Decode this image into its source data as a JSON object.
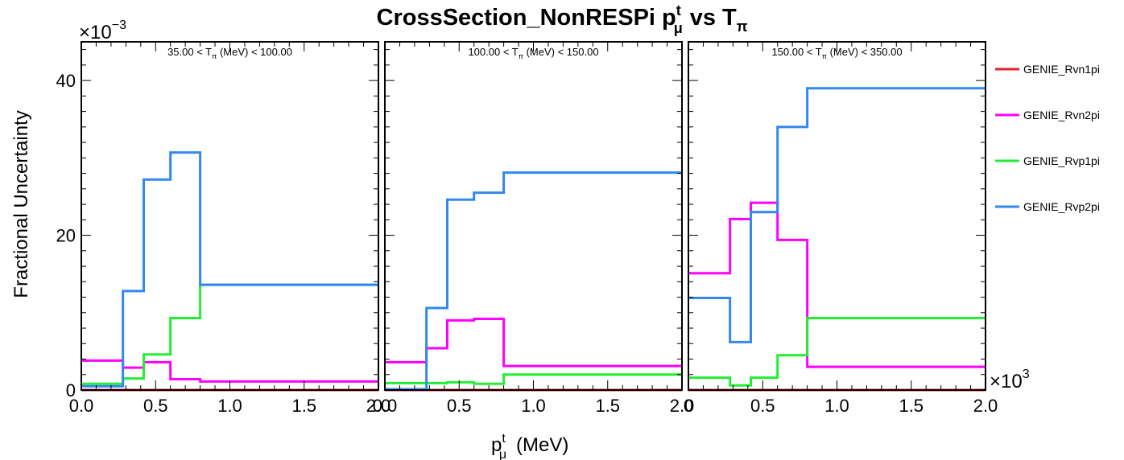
{
  "title": "CrossSection_NonRESPi",
  "title_main": "p",
  "title_main_sup": "t",
  "title_main_sub": "μ",
  "title_vs": "vs",
  "title_t": "T",
  "title_t_sub": "π",
  "y_axis_label": "Fractional Uncertainty",
  "x_axis_label": "p",
  "x_axis_label_sup": "t",
  "x_axis_label_sub": "μ",
  "x_axis_label_unit": "(MeV)",
  "y_multiplier": "×10",
  "y_multiplier_exp": "−3",
  "x_multiplier": "×10",
  "x_multiplier_exp": "3",
  "colors": {
    "GENIE_Rvn1pi": "#e8202a",
    "GENIE_Rvn2pi": "#ff00ff",
    "GENIE_Rvp1pi": "#22ee33",
    "GENIE_Rvp2pi": "#3388ee"
  },
  "chart_data": {
    "type": "line",
    "drawstyle": "steps-post",
    "bin_edges": [
      0.0,
      0.28,
      0.42,
      0.6,
      0.8,
      2.0
    ],
    "x_unit_note": "x values in units of 10^3 MeV",
    "y_unit_note": "y values in units of 10^-3",
    "ylim": [
      0,
      45
    ],
    "xlim": [
      0.0,
      2.0
    ],
    "y_ticks": [
      0,
      20,
      40
    ],
    "y_tick_labels": [
      "0",
      "20",
      "40"
    ],
    "x_ticks": [
      0.0,
      0.5,
      1.0,
      1.5,
      2.0
    ],
    "x_tick_labels": [
      "0.0",
      "0.5",
      "1.0",
      "1.5",
      "2.0"
    ],
    "x_tick_labels_last_panel": [
      "0",
      "0.5",
      "1.0",
      "1.5",
      "2.0"
    ],
    "legend": [
      "GENIE_Rvn1pi",
      "GENIE_Rvn2pi",
      "GENIE_Rvp1pi",
      "GENIE_Rvp2pi"
    ],
    "legend_position": "right",
    "panels": [
      {
        "label_pre": "35.00 < T",
        "label_sub": "π",
        "label_post": " (MeV) < 100.00",
        "series": [
          {
            "name": "GENIE_Rvn1pi",
            "values": [
              0,
              0,
              0,
              0,
              0
            ]
          },
          {
            "name": "GENIE_Rvn2pi",
            "values": [
              3.8,
              2.9,
              3.6,
              1.4,
              1.1
            ]
          },
          {
            "name": "GENIE_Rvp1pi",
            "values": [
              0.8,
              1.5,
              4.6,
              9.3,
              13.6
            ]
          },
          {
            "name": "GENIE_Rvp2pi",
            "values": [
              0.5,
              12.8,
              27.2,
              30.7,
              13.6
            ]
          }
        ]
      },
      {
        "label_pre": "100.00 < T",
        "label_sub": "π",
        "label_post": " (MeV) < 150.00",
        "series": [
          {
            "name": "GENIE_Rvn1pi",
            "values": [
              0,
              0,
              0,
              0,
              0
            ]
          },
          {
            "name": "GENIE_Rvn2pi",
            "values": [
              3.6,
              5.4,
              9.0,
              9.2,
              3.1
            ]
          },
          {
            "name": "GENIE_Rvp1pi",
            "values": [
              0.9,
              0.9,
              1.0,
              0.8,
              2.0
            ]
          },
          {
            "name": "GENIE_Rvp2pi",
            "values": [
              0.1,
              10.6,
              24.6,
              25.5,
              28.1
            ]
          }
        ]
      },
      {
        "label_pre": "150.00 < T",
        "label_sub": "π",
        "label_post": " (MeV) < 350.00",
        "series": [
          {
            "name": "GENIE_Rvn1pi",
            "values": [
              0,
              0,
              0,
              0,
              0
            ]
          },
          {
            "name": "GENIE_Rvn2pi",
            "values": [
              15.1,
              22.1,
              24.2,
              19.4,
              3.0
            ]
          },
          {
            "name": "GENIE_Rvp1pi",
            "values": [
              1.6,
              0.6,
              1.6,
              4.5,
              9.3
            ]
          },
          {
            "name": "GENIE_Rvp2pi",
            "values": [
              11.9,
              6.2,
              23.0,
              34.0,
              39.0
            ]
          }
        ]
      }
    ]
  }
}
